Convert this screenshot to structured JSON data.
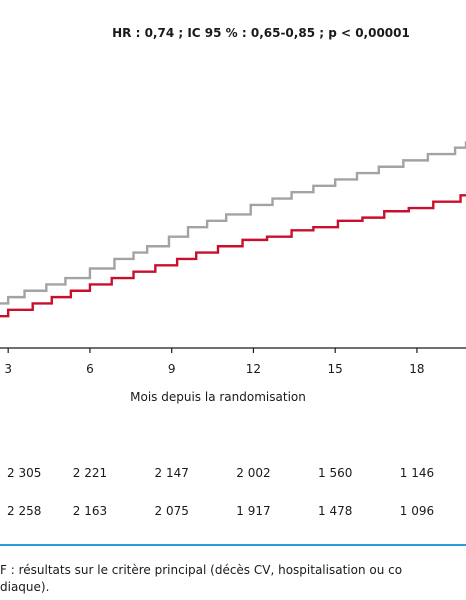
{
  "hr_annotation": "HR : 0,74 ; IC 95 % : 0,65-0,85 ; p < 0,00001",
  "chart_data": {
    "type": "line",
    "step": true,
    "xlabel": "Mois depuis la randomisation",
    "xticks": [
      3,
      6,
      9,
      12,
      15,
      18
    ],
    "xlim": [
      2.7,
      19.8
    ],
    "ylim": [
      0,
      1
    ],
    "grid": false,
    "series": [
      {
        "color": "#a3a3a3",
        "x": [
          2.7,
          3.0,
          3.6,
          4.4,
          5.1,
          6.0,
          6.9,
          7.6,
          8.1,
          8.9,
          9.6,
          10.3,
          11.0,
          11.9,
          12.7,
          13.4,
          14.2,
          15.0,
          15.8,
          16.6,
          17.5,
          18.4,
          19.4,
          19.8
        ],
        "y": [
          0.14,
          0.16,
          0.18,
          0.2,
          0.22,
          0.25,
          0.28,
          0.3,
          0.32,
          0.35,
          0.38,
          0.4,
          0.42,
          0.45,
          0.47,
          0.49,
          0.51,
          0.53,
          0.55,
          0.57,
          0.59,
          0.61,
          0.63,
          0.65
        ]
      },
      {
        "color": "#c8102e",
        "x": [
          2.7,
          3.0,
          3.9,
          4.6,
          5.3,
          6.0,
          6.8,
          7.6,
          8.4,
          9.2,
          9.9,
          10.7,
          11.6,
          12.5,
          13.4,
          14.2,
          15.1,
          16.0,
          16.8,
          17.7,
          18.6,
          19.6,
          19.8
        ],
        "y": [
          0.1,
          0.12,
          0.14,
          0.16,
          0.18,
          0.2,
          0.22,
          0.24,
          0.26,
          0.28,
          0.3,
          0.32,
          0.34,
          0.35,
          0.37,
          0.38,
          0.4,
          0.41,
          0.43,
          0.44,
          0.46,
          0.48,
          0.48
        ]
      }
    ]
  },
  "risk_table": {
    "rows": [
      [
        "2 305",
        "2 221",
        "2 147",
        "2 002",
        "1 560",
        "1 146"
      ],
      [
        "2 258",
        "2 163",
        "2 075",
        "1 917",
        "1 478",
        "1 096"
      ]
    ]
  },
  "caption": {
    "line1": "F : résultats sur le critère principal (décès CV, hospitalisation ou co",
    "line2": "diaque)."
  }
}
